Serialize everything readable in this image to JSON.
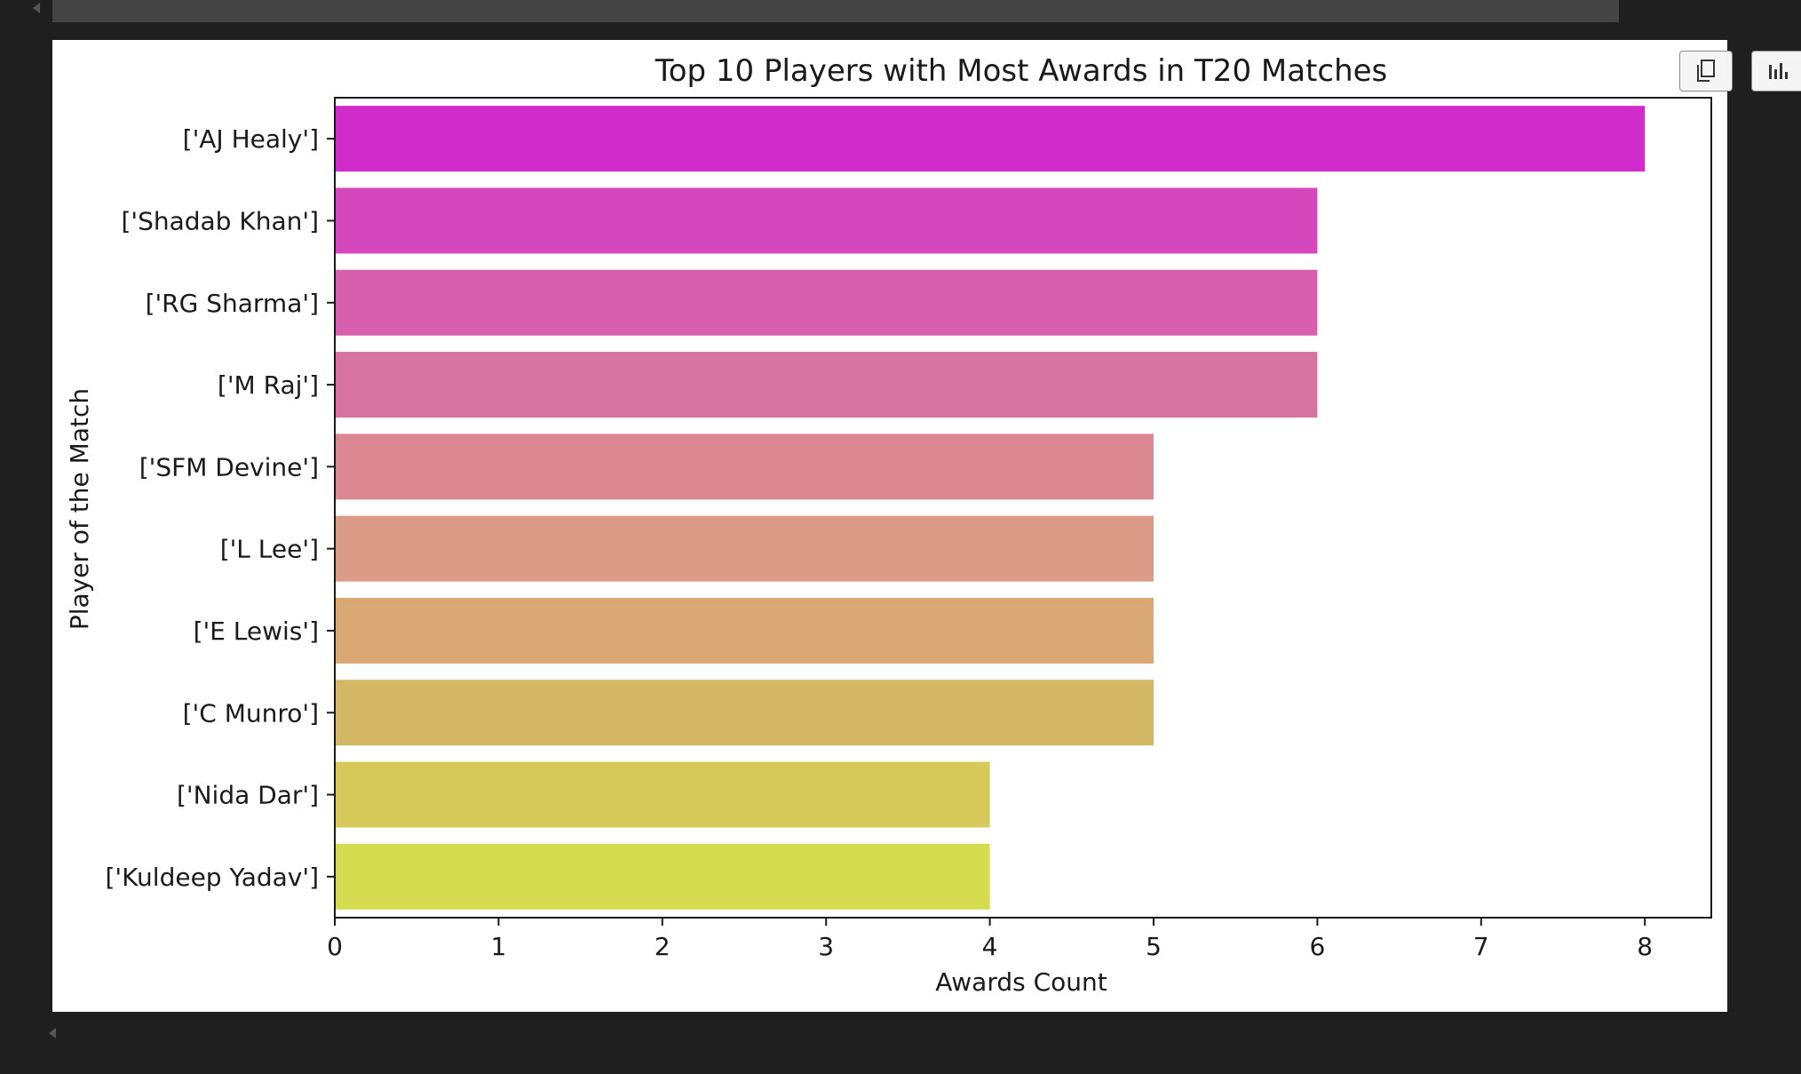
{
  "toolbar": {
    "copy_icon": "copy-icon",
    "chart_icon": "bar-chart-icon"
  },
  "chart_data": {
    "type": "bar",
    "orientation": "horizontal",
    "title": "Top 10 Players with Most Awards in T20 Matches",
    "xlabel": "Awards Count",
    "ylabel": "Player of the Match",
    "categories": [
      "['AJ Healy']",
      "['Shadab Khan']",
      "['RG Sharma']",
      "['M Raj']",
      "['SFM Devine']",
      "['L Lee']",
      "['E Lewis']",
      "['C Munro']",
      "['Nida Dar']",
      "['Kuldeep Yadav']"
    ],
    "values": [
      8,
      6,
      6,
      6,
      5,
      5,
      5,
      5,
      4,
      4
    ],
    "colors": [
      "#cf2ccb",
      "#d447bd",
      "#d75fae",
      "#d7739f",
      "#dc8893",
      "#db9b86",
      "#d9a874",
      "#d5b865",
      "#d6c95a",
      "#d6dc50"
    ],
    "xlim": [
      0,
      8.4
    ],
    "xticks": [
      "0",
      "1",
      "2",
      "3",
      "4",
      "5",
      "6",
      "7",
      "8"
    ],
    "grid": false,
    "legend": "none"
  }
}
